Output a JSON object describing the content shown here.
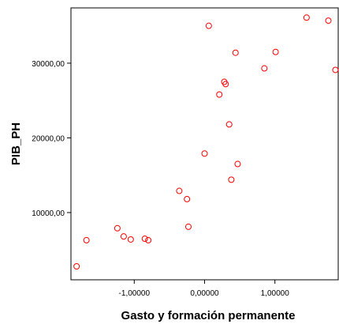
{
  "chart_data": {
    "type": "scatter",
    "xlabel": "Gasto y formación permanente",
    "ylabel": "PIB_PH",
    "xlim": [
      -1.9,
      1.9
    ],
    "ylim": [
      1000,
      37400
    ],
    "x_ticks": [
      -1,
      0,
      1
    ],
    "x_tick_labels": [
      "-1,00000",
      "0,00000",
      "1,00000"
    ],
    "y_ticks": [
      10000,
      20000,
      30000
    ],
    "y_tick_labels": [
      "10000,00",
      "20000,00",
      "30000,00"
    ],
    "grid": false,
    "legend": "none",
    "marker_color": "#ff0000",
    "points": [
      {
        "x": -1.82,
        "y": 2800
      },
      {
        "x": -1.68,
        "y": 6300
      },
      {
        "x": -1.24,
        "y": 7900
      },
      {
        "x": -1.15,
        "y": 6800
      },
      {
        "x": -1.05,
        "y": 6400
      },
      {
        "x": -0.85,
        "y": 6500
      },
      {
        "x": -0.8,
        "y": 6300
      },
      {
        "x": -0.36,
        "y": 12900
      },
      {
        "x": -0.25,
        "y": 11800
      },
      {
        "x": -0.23,
        "y": 8100
      },
      {
        "x": 0.0,
        "y": 17900
      },
      {
        "x": 0.06,
        "y": 35000
      },
      {
        "x": 0.21,
        "y": 25800
      },
      {
        "x": 0.28,
        "y": 27500
      },
      {
        "x": 0.3,
        "y": 27200
      },
      {
        "x": 0.35,
        "y": 21800
      },
      {
        "x": 0.38,
        "y": 14400
      },
      {
        "x": 0.44,
        "y": 31400
      },
      {
        "x": 0.47,
        "y": 16500
      },
      {
        "x": 0.85,
        "y": 29300
      },
      {
        "x": 1.01,
        "y": 31500
      },
      {
        "x": 1.45,
        "y": 36100
      },
      {
        "x": 1.76,
        "y": 35700
      },
      {
        "x": 1.86,
        "y": 29100
      }
    ]
  }
}
